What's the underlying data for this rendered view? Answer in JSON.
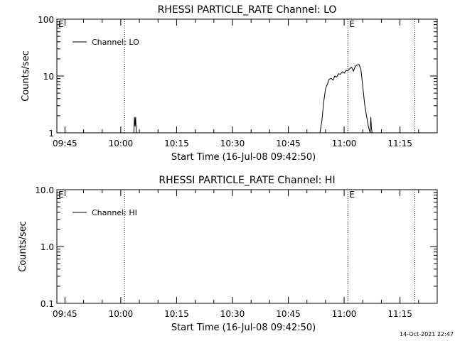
{
  "chart_data": [
    {
      "type": "line",
      "title": "RHESSI PARTICLE_RATE Channel: LO",
      "xlabel": "Start Time (16-Jul-08 09:42:50)",
      "ylabel": "Counts/sec",
      "x_ticks": [
        "09:45",
        "10:00",
        "10:15",
        "10:30",
        "10:45",
        "11:00",
        "11:15"
      ],
      "y_ticks": [
        "1",
        "10",
        "100"
      ],
      "y_scale": "log",
      "ylim": [
        1,
        100
      ],
      "xlim": [
        "09:42:50",
        "11:25:00"
      ],
      "legend": {
        "position": "top-left",
        "entries": [
          "Channel: LO"
        ]
      },
      "markers": [
        {
          "time": "09:42:50",
          "label": "E"
        },
        {
          "time": "10:01:00",
          "label": ""
        },
        {
          "time": "11:01:00",
          "label": "E"
        },
        {
          "time": "11:19:00",
          "label": ""
        }
      ],
      "series": [
        {
          "name": "Channel: LO",
          "x": [
            "10:03:30",
            "10:03:40",
            "10:03:50",
            "10:04:00",
            "10:04:10",
            "10:53:30",
            "10:54:00",
            "10:54:30",
            "10:55:00",
            "10:55:30",
            "10:56:00",
            "10:56:30",
            "10:57:00",
            "10:57:30",
            "10:58:00",
            "10:58:30",
            "10:59:00",
            "10:59:30",
            "11:00:00",
            "11:00:30",
            "11:01:00",
            "11:01:30",
            "11:02:00",
            "11:02:30",
            "11:03:00",
            "11:03:30",
            "11:04:00",
            "11:04:30",
            "11:05:00",
            "11:05:30",
            "11:06:00",
            "11:06:30",
            "11:07:00",
            "11:07:10",
            "11:07:20",
            "11:07:30"
          ],
          "y": [
            1,
            1.9,
            1.3,
            1.9,
            1,
            1,
            1.6,
            3.5,
            6,
            7.2,
            8.8,
            9.1,
            8.5,
            10,
            9.6,
            11,
            10.7,
            11.8,
            11.2,
            12.6,
            12.3,
            13.5,
            14.3,
            12.2,
            14.8,
            15.6,
            16,
            13,
            6.5,
            3.2,
            2,
            1.3,
            1,
            1.9,
            1.2,
            1
          ]
        }
      ]
    },
    {
      "type": "line",
      "title": "RHESSI PARTICLE_RATE Channel: HI",
      "xlabel": "Start Time (16-Jul-08 09:42:50)",
      "ylabel": "Counts/sec",
      "x_ticks": [
        "09:45",
        "10:00",
        "10:15",
        "10:30",
        "10:45",
        "11:00",
        "11:15"
      ],
      "y_ticks": [
        "0.1",
        "1.0",
        "10.0"
      ],
      "y_scale": "log",
      "ylim": [
        0.1,
        10
      ],
      "xlim": [
        "09:42:50",
        "11:25:00"
      ],
      "legend": {
        "position": "top-left",
        "entries": [
          "Channel: HI"
        ]
      },
      "markers": [
        {
          "time": "09:42:50",
          "label": "E"
        },
        {
          "time": "10:01:00",
          "label": ""
        },
        {
          "time": "11:01:00",
          "label": "E"
        },
        {
          "time": "11:19:00",
          "label": ""
        }
      ],
      "series": [
        {
          "name": "Channel: HI",
          "x": [],
          "y": []
        }
      ]
    }
  ],
  "footer": {
    "timestamp": "14-Oct-2021 22:47"
  }
}
